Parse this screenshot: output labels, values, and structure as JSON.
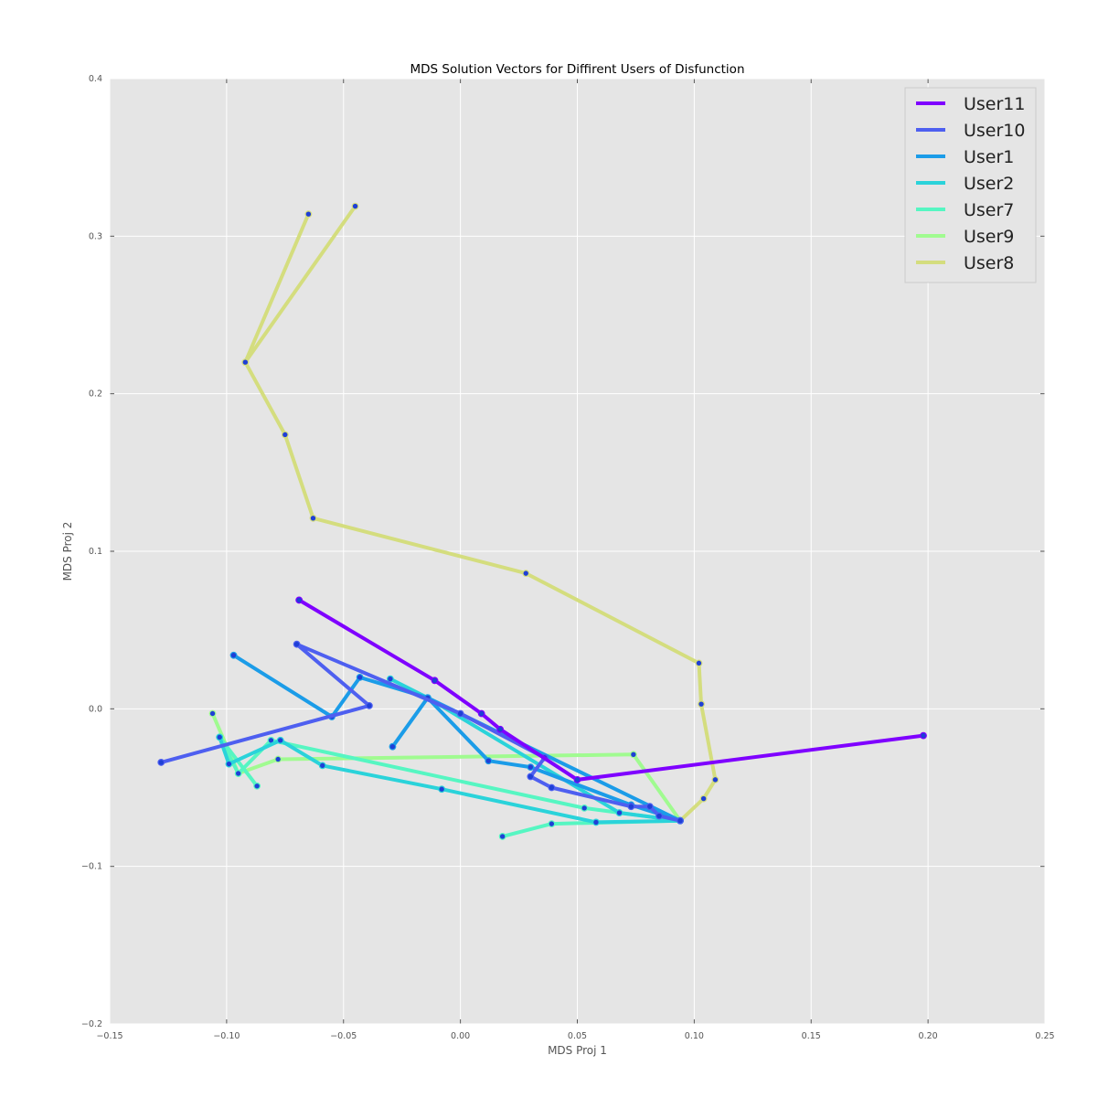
{
  "chart_data": {
    "type": "line",
    "title": "MDS Solution Vectors for Diffirent Users of Disfunction",
    "xlabel": "MDS Proj 1",
    "ylabel": "MDS Proj 2",
    "xlim": [
      -0.15,
      0.25
    ],
    "ylim": [
      -0.2,
      0.4
    ],
    "xticks": [
      -0.15,
      -0.1,
      -0.05,
      0.0,
      0.05,
      0.1,
      0.15,
      0.2,
      0.25
    ],
    "xtick_labels": [
      "−0.15",
      "−0.10",
      "−0.05",
      "0.00",
      "0.05",
      "0.10",
      "0.15",
      "0.20",
      "0.25"
    ],
    "yticks": [
      -0.2,
      -0.1,
      0.0,
      0.1,
      0.2,
      0.3,
      0.4
    ],
    "ytick_labels": [
      "−0.2",
      "−0.1",
      "0.0",
      "0.1",
      "0.2",
      "0.3",
      "0.4"
    ],
    "grid": true,
    "background": "#e5e5e5",
    "legend_position": "top-right",
    "marker_color": "#1f3fd6",
    "series": [
      {
        "name": "User11",
        "color": "#7f00ff",
        "points": [
          [
            -0.069,
            0.069
          ],
          [
            -0.011,
            0.018
          ],
          [
            0.009,
            -0.003
          ],
          [
            0.017,
            -0.013
          ],
          [
            0.05,
            -0.045
          ],
          [
            0.198,
            -0.017
          ]
        ]
      },
      {
        "name": "User10",
        "color": "#4e5ff0",
        "points": [
          [
            -0.128,
            -0.034
          ],
          [
            -0.039,
            0.002
          ],
          [
            -0.07,
            0.041
          ],
          [
            0.0,
            -0.003
          ],
          [
            0.036,
            -0.031
          ],
          [
            0.03,
            -0.043
          ],
          [
            0.039,
            -0.05
          ],
          [
            0.073,
            -0.062
          ],
          [
            0.081,
            -0.062
          ],
          [
            0.085,
            -0.068
          ],
          [
            0.094,
            -0.071
          ]
        ]
      },
      {
        "name": "User1",
        "color": "#1b9ce8",
        "points": [
          [
            -0.097,
            0.034
          ],
          [
            -0.055,
            -0.005
          ],
          [
            -0.043,
            0.02
          ],
          [
            -0.014,
            0.007
          ],
          [
            0.012,
            -0.033
          ],
          [
            0.03,
            -0.037
          ],
          [
            0.073,
            -0.061
          ],
          [
            0.094,
            -0.071
          ],
          [
            -0.014,
            0.007
          ],
          [
            -0.029,
            -0.024
          ]
        ]
      },
      {
        "name": "User2",
        "color": "#2ad3da",
        "points": [
          [
            -0.103,
            -0.018
          ],
          [
            -0.099,
            -0.035
          ],
          [
            -0.077,
            -0.02
          ],
          [
            -0.059,
            -0.036
          ],
          [
            -0.008,
            -0.051
          ],
          [
            0.058,
            -0.072
          ],
          [
            0.094,
            -0.071
          ],
          [
            0.068,
            -0.066
          ],
          [
            -0.014,
            0.007
          ],
          [
            -0.03,
            0.019
          ]
        ]
      },
      {
        "name": "User7",
        "color": "#56f6c2",
        "points": [
          [
            -0.087,
            -0.049
          ],
          [
            -0.103,
            -0.018
          ],
          [
            -0.095,
            -0.041
          ],
          [
            -0.081,
            -0.02
          ],
          [
            0.053,
            -0.063
          ],
          [
            0.094,
            -0.071
          ],
          [
            0.039,
            -0.073
          ],
          [
            0.018,
            -0.081
          ]
        ]
      },
      {
        "name": "User9",
        "color": "#a0fb90",
        "points": [
          [
            -0.106,
            -0.003
          ],
          [
            -0.095,
            -0.041
          ],
          [
            -0.078,
            -0.032
          ],
          [
            0.074,
            -0.029
          ],
          [
            0.094,
            -0.071
          ]
        ]
      },
      {
        "name": "User8",
        "color": "#d4dd7e",
        "points": [
          [
            -0.065,
            0.314
          ],
          [
            -0.092,
            0.22
          ],
          [
            -0.045,
            0.319
          ],
          [
            -0.092,
            0.22
          ],
          [
            -0.075,
            0.174
          ],
          [
            -0.063,
            0.121
          ],
          [
            0.028,
            0.086
          ],
          [
            0.102,
            0.029
          ],
          [
            0.103,
            0.003
          ],
          [
            0.109,
            -0.045
          ],
          [
            0.104,
            -0.057
          ],
          [
            0.094,
            -0.071
          ]
        ]
      }
    ]
  }
}
